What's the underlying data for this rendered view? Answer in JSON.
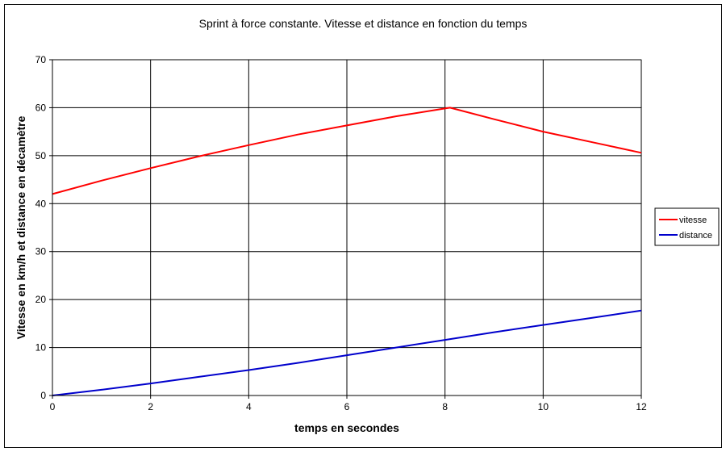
{
  "chart_data": {
    "type": "line",
    "title": "Sprint à force constante. Vitesse et distance en fonction du temps",
    "xlabel": "temps en secondes",
    "ylabel": "Vitesse en km/h et distance en décamètre",
    "xlim": [
      0,
      12
    ],
    "ylim": [
      0,
      70
    ],
    "x_ticks": [
      "0",
      "2",
      "4",
      "6",
      "8",
      "10",
      "12"
    ],
    "y_ticks": [
      "0",
      "10",
      "20",
      "30",
      "40",
      "50",
      "60",
      "70"
    ],
    "grid": true,
    "legend_position": "right",
    "series": [
      {
        "name": "vitesse",
        "color": "#ff0000",
        "points": [
          [
            0,
            42
          ],
          [
            1,
            44.8
          ],
          [
            2,
            47.4
          ],
          [
            3,
            49.9
          ],
          [
            4,
            52.2
          ],
          [
            5,
            54.4
          ],
          [
            6,
            56.3
          ],
          [
            7,
            58.2
          ],
          [
            8.1,
            60
          ],
          [
            9,
            57.6
          ],
          [
            10,
            55
          ],
          [
            11,
            52.8
          ],
          [
            12,
            50.6
          ]
        ]
      },
      {
        "name": "distance",
        "color": "#0000cc",
        "points": [
          [
            0,
            0
          ],
          [
            1,
            1.2
          ],
          [
            2,
            2.5
          ],
          [
            3,
            3.9
          ],
          [
            4,
            5.3
          ],
          [
            5,
            6.8
          ],
          [
            6,
            8.4
          ],
          [
            7,
            10
          ],
          [
            8,
            11.6
          ],
          [
            9,
            13.2
          ],
          [
            10,
            14.7
          ],
          [
            11,
            16.2
          ],
          [
            12,
            17.7
          ]
        ]
      }
    ]
  }
}
